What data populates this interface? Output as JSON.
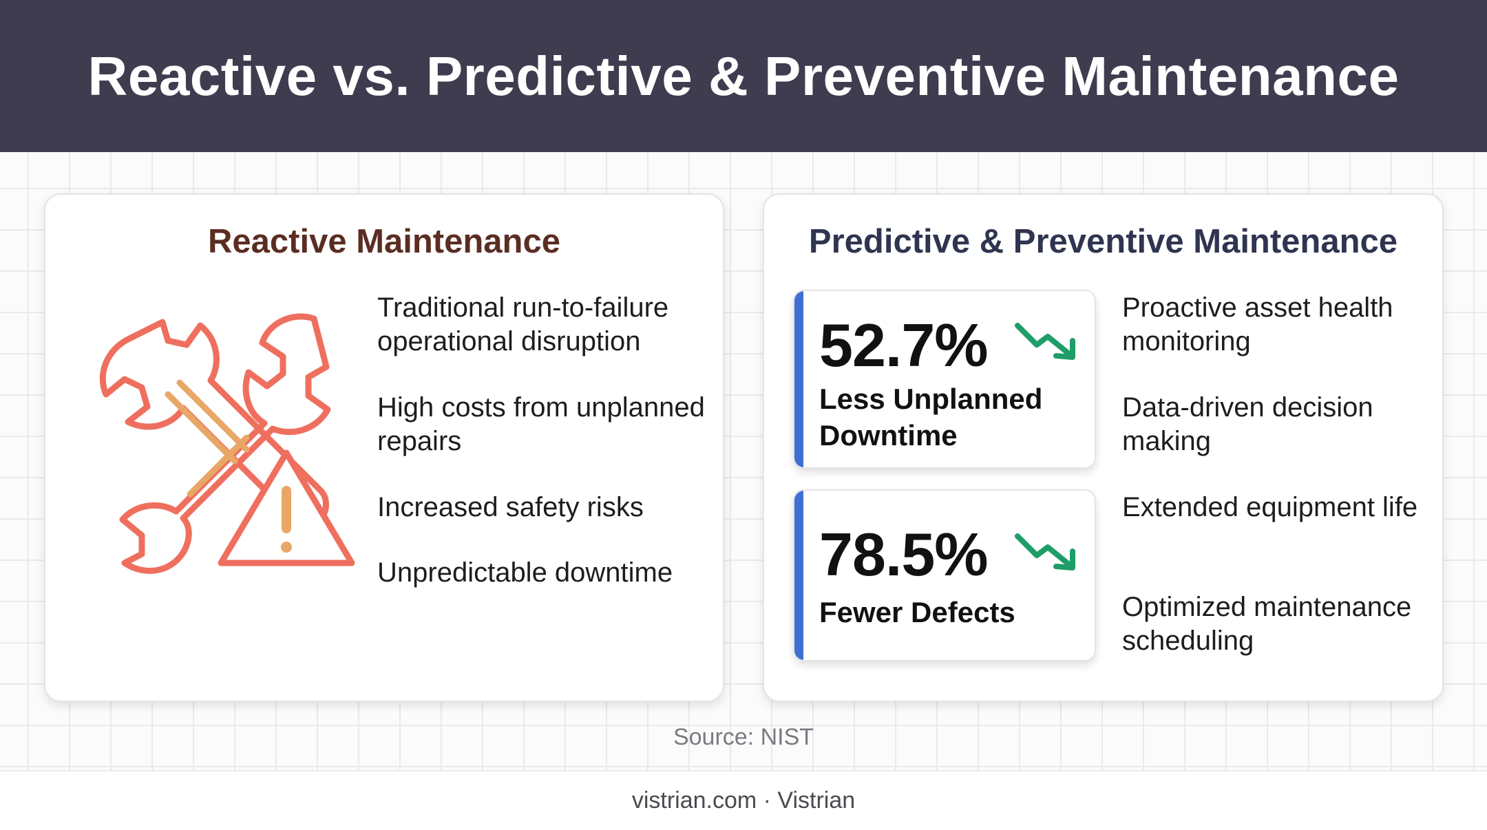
{
  "header": {
    "title": "Reactive vs. Predictive & Preventive Maintenance"
  },
  "reactive": {
    "title": "Reactive Maintenance",
    "illustration_icon": "crossed-wrenches-warning-icon",
    "bullets": [
      "Traditional run-to-failure operational disruption",
      "High costs from unplanned repairs",
      "Increased safety risks",
      "Unpredictable downtime"
    ]
  },
  "predictive": {
    "title": "Predictive & Preventive Maintenance",
    "stats": [
      {
        "value": "52.7%",
        "label": "Less Unplanned Downtime",
        "trend_icon": "trend-down-icon"
      },
      {
        "value": "78.5%",
        "label": "Fewer Defects",
        "trend_icon": "trend-down-icon"
      }
    ],
    "bullets": [
      "Proactive asset health monitoring",
      "Data-driven decision making",
      "Extended equipment life",
      "Optimized maintenance scheduling"
    ]
  },
  "source": "Source: NIST",
  "footer": "vistrian.com · Vistrian",
  "colors": {
    "header_bg": "#3f3c4f",
    "reactive_title": "#5b2d22",
    "predictive_title": "#2f3550",
    "icon_coral": "#ef6f5e",
    "icon_accent": "#e8a766",
    "stat_accent_bar": "#3f6fd1",
    "trend_green": "#1f9d68"
  }
}
